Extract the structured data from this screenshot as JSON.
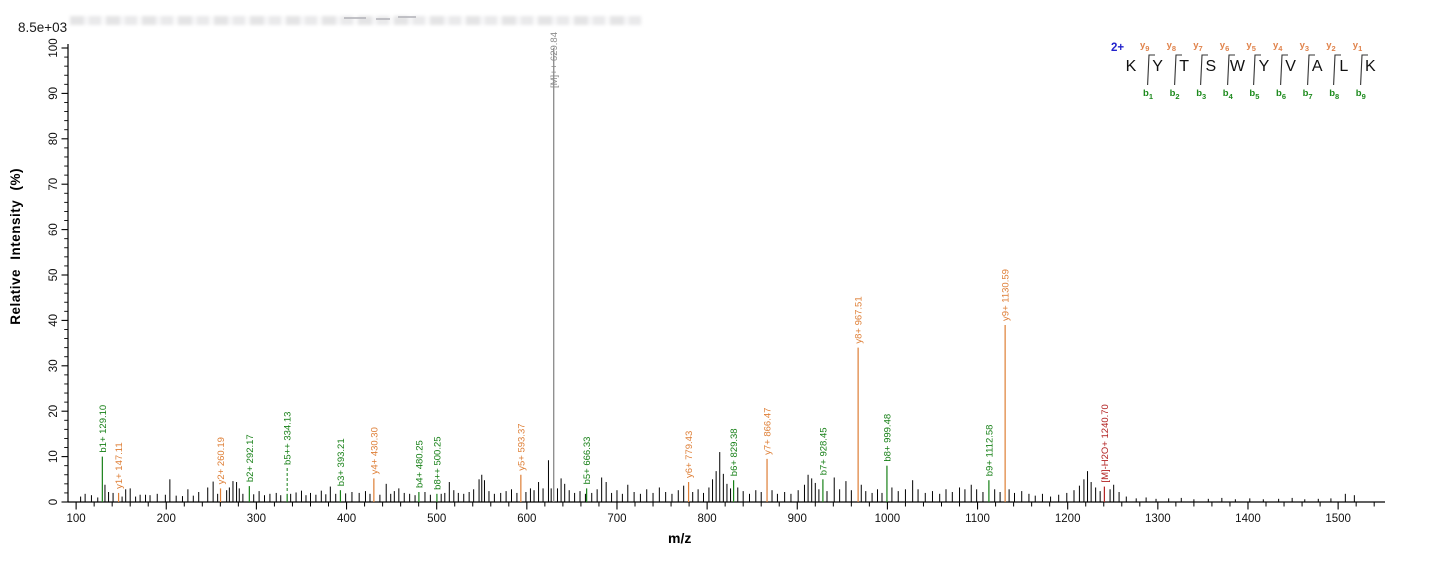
{
  "header": {
    "base_peak_intensity": "8.5e+03"
  },
  "peptide_panel": {
    "charge": "2+",
    "residues": [
      "K",
      "Y",
      "T",
      "S",
      "W",
      "Y",
      "V",
      "A",
      "L",
      "K"
    ],
    "y_ions": [
      "y9",
      "y8",
      "y7",
      "y6",
      "y5",
      "y4",
      "y3",
      "y2",
      "y1"
    ],
    "b_ions": [
      "b1",
      "b2",
      "b3",
      "b4",
      "b5",
      "b6",
      "b7",
      "b8",
      "b9"
    ]
  },
  "chart_data": {
    "type": "bar",
    "subtype": "ms2-stick-spectrum",
    "title": "",
    "xlabel": "m/z",
    "ylabel": "Relative  Intensity (%)",
    "xlim": [
      91,
      1552
    ],
    "ylim": [
      0,
      100
    ],
    "x_major_ticks": [
      100,
      200,
      300,
      400,
      500,
      600,
      700,
      800,
      900,
      1000,
      1100,
      1200,
      1300,
      1400,
      1500
    ],
    "x_minor_step": 20,
    "y_major_ticks": [
      0,
      10,
      20,
      30,
      40,
      50,
      60,
      70,
      80,
      90,
      100
    ],
    "y_minor_step": 2,
    "grid": false,
    "legend": "none",
    "colors": {
      "b_ion": "#178017",
      "y_ion": "#de7e35",
      "precursor_line": "#808080",
      "precursor_label": "#8c8c8c",
      "neutral_loss": "#b22222",
      "noise": "#000000",
      "charge_label": "#2222cc"
    },
    "annotated_peaks": [
      {
        "id": "b1",
        "label": "b1+ 129.10",
        "mz": 129.1,
        "intensity": 10,
        "series": "b"
      },
      {
        "id": "y1",
        "label": "y1+ 147.11",
        "mz": 147.11,
        "intensity": 2,
        "series": "y"
      },
      {
        "id": "y2",
        "label": "y2+ 260.19",
        "mz": 260.19,
        "intensity": 3,
        "series": "y"
      },
      {
        "id": "b2",
        "label": "b2+ 292.17",
        "mz": 292.17,
        "intensity": 3.5,
        "series": "b"
      },
      {
        "id": "b5pp",
        "label": "b5++ 334.13",
        "mz": 334.13,
        "intensity": 1.8,
        "series": "b",
        "dashed_leader": true,
        "leader_from_pct": 7.5
      },
      {
        "id": "b3",
        "label": "b3+ 393.21",
        "mz": 393.21,
        "intensity": 2.6,
        "series": "b"
      },
      {
        "id": "y4",
        "label": "y4+ 430.30",
        "mz": 430.3,
        "intensity": 5.2,
        "series": "y"
      },
      {
        "id": "b4",
        "label": "b4+ 480.25",
        "mz": 480.25,
        "intensity": 2.2,
        "series": "b"
      },
      {
        "id": "b8pp",
        "label": "b8++ 500.25",
        "mz": 500.25,
        "intensity": 1.8,
        "series": "b"
      },
      {
        "id": "y5",
        "label": "y5+ 593.37",
        "mz": 593.37,
        "intensity": 6,
        "series": "y"
      },
      {
        "id": "M",
        "label": "[M]++ 629.84",
        "mz": 629.84,
        "intensity": 100,
        "series": "precursor"
      },
      {
        "id": "b5",
        "label": "b5+ 666.33",
        "mz": 666.33,
        "intensity": 3,
        "series": "b"
      },
      {
        "id": "y6",
        "label": "y6+ 779.43",
        "mz": 779.43,
        "intensity": 4.4,
        "series": "y"
      },
      {
        "id": "b6",
        "label": "b6+ 829.38",
        "mz": 829.38,
        "intensity": 4.8,
        "series": "b"
      },
      {
        "id": "y7",
        "label": "y7+ 866.47",
        "mz": 866.47,
        "intensity": 9.5,
        "series": "y"
      },
      {
        "id": "b7",
        "label": "b7+ 928.45",
        "mz": 928.45,
        "intensity": 5,
        "series": "b"
      },
      {
        "id": "y8",
        "label": "y8+ 967.51",
        "mz": 967.51,
        "intensity": 34,
        "series": "y"
      },
      {
        "id": "b8",
        "label": "b8+ 999.48",
        "mz": 999.48,
        "intensity": 8,
        "series": "b"
      },
      {
        "id": "b9",
        "label": "b9+ 1112.58",
        "mz": 1112.58,
        "intensity": 4.8,
        "series": "b"
      },
      {
        "id": "y9",
        "label": "y9+ 1130.59",
        "mz": 1130.59,
        "intensity": 39,
        "series": "y"
      },
      {
        "id": "MH2O",
        "label": "[M]-H2O+ 1240.70",
        "mz": 1240.7,
        "intensity": 3.4,
        "series": "neutral_loss"
      }
    ],
    "noise_peaks": [
      [
        105,
        1.2
      ],
      [
        110,
        1.8
      ],
      [
        117,
        1.5
      ],
      [
        124,
        1.0
      ],
      [
        132,
        3.8
      ],
      [
        136,
        2.2
      ],
      [
        141,
        2.0
      ],
      [
        151,
        1.2
      ],
      [
        155,
        2.8
      ],
      [
        160,
        3.0
      ],
      [
        166,
        1.2
      ],
      [
        171,
        1.6
      ],
      [
        177,
        1.6
      ],
      [
        182,
        1.5
      ],
      [
        190,
        1.8
      ],
      [
        199,
        1.6
      ],
      [
        204,
        5.0
      ],
      [
        211,
        1.4
      ],
      [
        218,
        1.3
      ],
      [
        224,
        2.8
      ],
      [
        230,
        1.4
      ],
      [
        236,
        2.2
      ],
      [
        246,
        3.2
      ],
      [
        252,
        4.5
      ],
      [
        257,
        1.8
      ],
      [
        267,
        2.6
      ],
      [
        270,
        3.2
      ],
      [
        274,
        4.6
      ],
      [
        278,
        4.4
      ],
      [
        281,
        3.0
      ],
      [
        285,
        1.8
      ],
      [
        297,
        1.7
      ],
      [
        303,
        2.4
      ],
      [
        309,
        1.5
      ],
      [
        315,
        1.8
      ],
      [
        322,
        2.0
      ],
      [
        327,
        1.5
      ],
      [
        338,
        1.8
      ],
      [
        344,
        2.1
      ],
      [
        350,
        2.5
      ],
      [
        355,
        1.5
      ],
      [
        360,
        2.0
      ],
      [
        366,
        1.6
      ],
      [
        372,
        2.5
      ],
      [
        377,
        1.7
      ],
      [
        382,
        3.4
      ],
      [
        388,
        1.8
      ],
      [
        399,
        1.9
      ],
      [
        406,
        2.2
      ],
      [
        414,
        2.0
      ],
      [
        421,
        2.4
      ],
      [
        426,
        1.8
      ],
      [
        437,
        1.6
      ],
      [
        444,
        4.0
      ],
      [
        449,
        1.8
      ],
      [
        453,
        2.4
      ],
      [
        458,
        3.0
      ],
      [
        464,
        2.0
      ],
      [
        470,
        1.8
      ],
      [
        476,
        1.5
      ],
      [
        487,
        2.2
      ],
      [
        493,
        1.6
      ],
      [
        505,
        1.8
      ],
      [
        509,
        2.0
      ],
      [
        514,
        4.4
      ],
      [
        519,
        2.6
      ],
      [
        524,
        2.0
      ],
      [
        530,
        1.8
      ],
      [
        536,
        2.2
      ],
      [
        541,
        2.8
      ],
      [
        547,
        5.0
      ],
      [
        550,
        6.0
      ],
      [
        553,
        4.8
      ],
      [
        558,
        2.4
      ],
      [
        564,
        1.8
      ],
      [
        571,
        2.0
      ],
      [
        577,
        2.4
      ],
      [
        583,
        2.8
      ],
      [
        589,
        2.0
      ],
      [
        599,
        2.2
      ],
      [
        604,
        3.0
      ],
      [
        608,
        2.6
      ],
      [
        613,
        4.4
      ],
      [
        618,
        3.0
      ],
      [
        624,
        9.2
      ],
      [
        627,
        3.0
      ],
      [
        634,
        3.0
      ],
      [
        638,
        5.2
      ],
      [
        642,
        4.0
      ],
      [
        647,
        2.6
      ],
      [
        653,
        2.0
      ],
      [
        659,
        2.4
      ],
      [
        665,
        1.8
      ],
      [
        672,
        2.0
      ],
      [
        678,
        2.8
      ],
      [
        683,
        5.4
      ],
      [
        688,
        4.4
      ],
      [
        694,
        2.0
      ],
      [
        700,
        2.6
      ],
      [
        706,
        1.8
      ],
      [
        712,
        3.8
      ],
      [
        719,
        2.2
      ],
      [
        726,
        1.8
      ],
      [
        733,
        2.8
      ],
      [
        740,
        2.0
      ],
      [
        747,
        3.2
      ],
      [
        754,
        2.2
      ],
      [
        761,
        1.8
      ],
      [
        768,
        2.6
      ],
      [
        774,
        3.6
      ],
      [
        784,
        2.2
      ],
      [
        790,
        2.8
      ],
      [
        796,
        2.0
      ],
      [
        802,
        3.2
      ],
      [
        806,
        5.0
      ],
      [
        810,
        6.8
      ],
      [
        814,
        11.0
      ],
      [
        818,
        6.2
      ],
      [
        822,
        4.0
      ],
      [
        826,
        3.0
      ],
      [
        834,
        3.2
      ],
      [
        840,
        2.4
      ],
      [
        847,
        1.8
      ],
      [
        854,
        2.6
      ],
      [
        860,
        2.2
      ],
      [
        872,
        2.6
      ],
      [
        878,
        1.8
      ],
      [
        886,
        2.2
      ],
      [
        893,
        1.8
      ],
      [
        901,
        2.6
      ],
      [
        908,
        3.8
      ],
      [
        912,
        6.0
      ],
      [
        916,
        5.2
      ],
      [
        920,
        4.2
      ],
      [
        924,
        2.8
      ],
      [
        933,
        2.4
      ],
      [
        941,
        5.4
      ],
      [
        947,
        2.8
      ],
      [
        954,
        4.6
      ],
      [
        960,
        2.6
      ],
      [
        971,
        3.8
      ],
      [
        976,
        2.4
      ],
      [
        983,
        2.0
      ],
      [
        989,
        2.8
      ],
      [
        994,
        2.0
      ],
      [
        1005,
        3.2
      ],
      [
        1012,
        2.4
      ],
      [
        1020,
        2.8
      ],
      [
        1028,
        4.8
      ],
      [
        1034,
        2.8
      ],
      [
        1042,
        2.0
      ],
      [
        1050,
        2.4
      ],
      [
        1058,
        1.8
      ],
      [
        1065,
        2.8
      ],
      [
        1072,
        2.2
      ],
      [
        1080,
        3.2
      ],
      [
        1086,
        2.8
      ],
      [
        1093,
        3.8
      ],
      [
        1099,
        2.8
      ],
      [
        1106,
        2.2
      ],
      [
        1119,
        2.8
      ],
      [
        1125,
        2.2
      ],
      [
        1135,
        2.8
      ],
      [
        1141,
        2.0
      ],
      [
        1149,
        2.4
      ],
      [
        1157,
        1.8
      ],
      [
        1164,
        1.4
      ],
      [
        1172,
        1.8
      ],
      [
        1181,
        1.2
      ],
      [
        1190,
        1.6
      ],
      [
        1199,
        2.0
      ],
      [
        1207,
        2.6
      ],
      [
        1213,
        3.6
      ],
      [
        1218,
        5.0
      ],
      [
        1222,
        6.8
      ],
      [
        1226,
        4.4
      ],
      [
        1231,
        3.2
      ],
      [
        1236,
        2.4
      ],
      [
        1247,
        2.8
      ],
      [
        1251,
        3.8
      ],
      [
        1257,
        2.2
      ],
      [
        1265,
        1.2
      ],
      [
        1276,
        0.8
      ],
      [
        1287,
        1.0
      ],
      [
        1298,
        0.7
      ],
      [
        1312,
        0.8
      ],
      [
        1326,
        0.9
      ],
      [
        1340,
        0.6
      ],
      [
        1356,
        0.7
      ],
      [
        1371,
        0.9
      ],
      [
        1386,
        0.6
      ],
      [
        1402,
        0.8
      ],
      [
        1417,
        0.6
      ],
      [
        1434,
        0.7
      ],
      [
        1449,
        0.9
      ],
      [
        1463,
        0.6
      ],
      [
        1478,
        0.7
      ],
      [
        1492,
        0.8
      ],
      [
        1508,
        1.8
      ],
      [
        1518,
        1.5
      ]
    ]
  }
}
